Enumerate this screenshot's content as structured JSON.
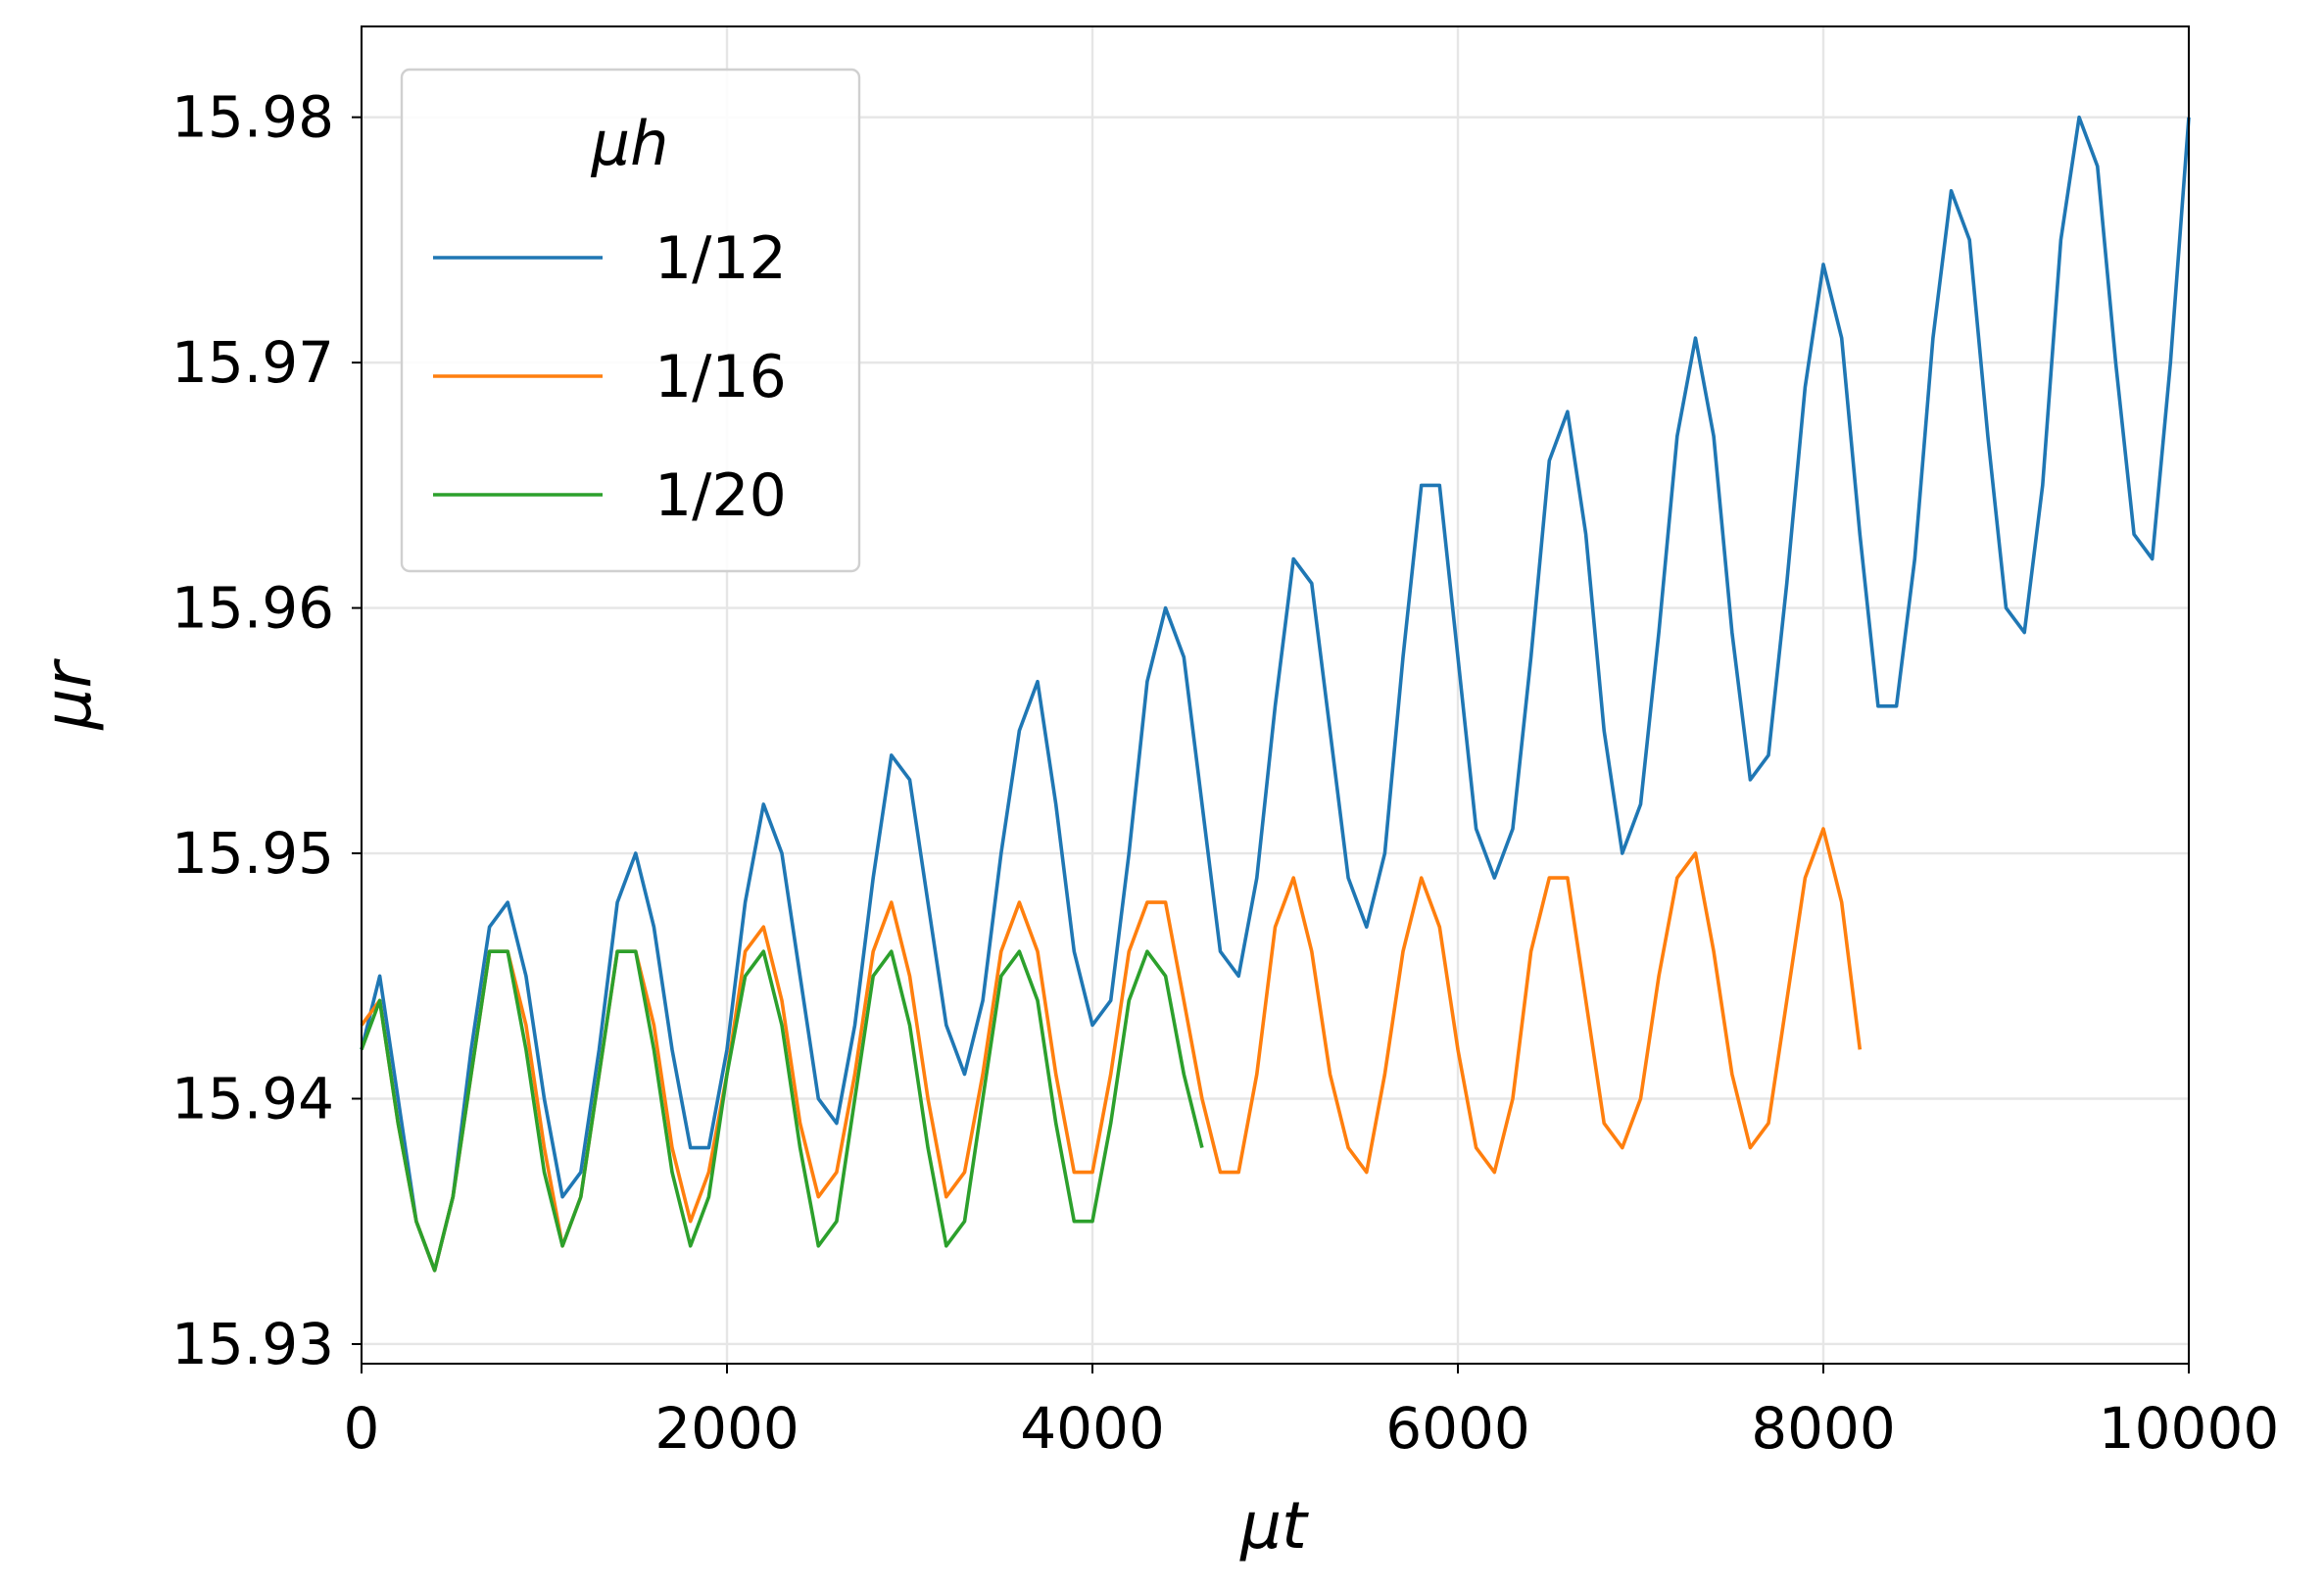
{
  "chart_data": {
    "type": "line",
    "x_label": "μt",
    "y_label": "μr",
    "legend_title": "μh",
    "legend_position": "upper left",
    "grid": true,
    "xlim": [
      0,
      10000
    ],
    "xticks": [
      0,
      2000,
      4000,
      6000,
      8000,
      10000
    ],
    "ylim": [
      15.9292,
      15.9837
    ],
    "yticks": [
      15.93,
      15.94,
      15.95,
      15.96,
      15.97,
      15.98
    ],
    "x": [
      0,
      100,
      200,
      300,
      400,
      500,
      600,
      700,
      800,
      900,
      1000,
      1100,
      1200,
      1300,
      1400,
      1500,
      1600,
      1700,
      1800,
      1900,
      2000,
      2100,
      2200,
      2300,
      2400,
      2500,
      2600,
      2700,
      2800,
      2900,
      3000,
      3100,
      3200,
      3300,
      3400,
      3500,
      3600,
      3700,
      3800,
      3900,
      4000,
      4100,
      4200,
      4300,
      4400,
      4500,
      4600,
      4700,
      4800,
      4900,
      5000,
      5100,
      5200,
      5300,
      5400,
      5500,
      5600,
      5700,
      5800,
      5900,
      6000,
      6100,
      6200,
      6300,
      6400,
      6500,
      6600,
      6700,
      6800,
      6900,
      7000,
      7100,
      7200,
      7300,
      7400,
      7500,
      7600,
      7700,
      7800,
      7900,
      8000,
      8100,
      8200,
      8300,
      8400,
      8500,
      8600,
      8700,
      8800,
      8900,
      9000,
      9100,
      9200,
      9300,
      9400,
      9500,
      9600,
      9700,
      9800,
      9900,
      10000
    ],
    "series": [
      {
        "name": "1/12",
        "color": "#1f77b4",
        "values": [
          15.942,
          15.945,
          15.94,
          15.935,
          15.933,
          15.936,
          15.942,
          15.947,
          15.948,
          15.945,
          15.94,
          15.936,
          15.937,
          15.942,
          15.948,
          15.95,
          15.947,
          15.942,
          15.938,
          15.938,
          15.942,
          15.948,
          15.952,
          15.95,
          15.945,
          15.94,
          15.939,
          15.943,
          15.949,
          15.954,
          15.953,
          15.948,
          15.943,
          15.941,
          15.944,
          15.95,
          15.955,
          15.957,
          15.952,
          15.946,
          15.943,
          15.944,
          15.95,
          15.957,
          15.96,
          15.958,
          15.952,
          15.946,
          15.945,
          15.949,
          15.956,
          15.962,
          15.961,
          15.955,
          15.949,
          15.947,
          15.95,
          15.958,
          15.965,
          15.965,
          15.958,
          15.951,
          15.949,
          15.951,
          15.958,
          15.966,
          15.968,
          15.963,
          15.955,
          15.95,
          15.952,
          15.959,
          15.967,
          15.971,
          15.967,
          15.959,
          15.953,
          15.954,
          15.961,
          15.969,
          15.974,
          15.971,
          15.963,
          15.956,
          15.956,
          15.962,
          15.971,
          15.977,
          15.975,
          15.967,
          15.96,
          15.959,
          15.965,
          15.975,
          15.98,
          15.978,
          15.97,
          15.963,
          15.962,
          15.97,
          15.98
        ]
      },
      {
        "name": "1/16",
        "color": "#ff7f0e",
        "values": [
          15.943,
          15.944,
          15.939,
          15.935,
          15.933,
          15.936,
          15.941,
          15.946,
          15.946,
          15.943,
          15.938,
          15.934,
          15.936,
          15.941,
          15.946,
          15.946,
          15.943,
          15.938,
          15.935,
          15.937,
          15.941,
          15.946,
          15.947,
          15.944,
          15.939,
          15.936,
          15.937,
          15.941,
          15.946,
          15.948,
          15.945,
          15.94,
          15.936,
          15.937,
          15.941,
          15.946,
          15.948,
          15.946,
          15.941,
          15.937,
          15.937,
          15.941,
          15.946,
          15.948,
          15.948,
          15.944,
          15.94,
          15.937,
          15.937,
          15.941,
          15.947,
          15.949,
          15.946,
          15.941,
          15.938,
          15.937,
          15.941,
          15.946,
          15.949,
          15.947,
          15.942,
          15.938,
          15.937,
          15.94,
          15.946,
          15.949,
          15.949,
          15.944,
          15.939,
          15.938,
          15.94,
          15.945,
          15.949,
          15.95,
          15.946,
          15.941,
          15.938,
          15.939,
          15.944,
          15.949,
          15.951,
          15.948,
          15.942,
          null,
          null,
          null,
          null,
          null,
          null,
          null,
          null,
          null,
          null,
          null,
          null,
          null,
          null,
          null,
          null,
          null,
          null
        ]
      },
      {
        "name": "1/20",
        "color": "#2ca02c",
        "values": [
          15.942,
          15.944,
          15.939,
          15.935,
          15.933,
          15.936,
          15.941,
          15.946,
          15.946,
          15.942,
          15.937,
          15.934,
          15.936,
          15.941,
          15.946,
          15.946,
          15.942,
          15.937,
          15.934,
          15.936,
          15.941,
          15.945,
          15.946,
          15.943,
          15.938,
          15.934,
          15.935,
          15.94,
          15.945,
          15.946,
          15.943,
          15.938,
          15.934,
          15.935,
          15.94,
          15.945,
          15.946,
          15.944,
          15.939,
          15.935,
          15.935,
          15.939,
          15.944,
          15.946,
          15.945,
          15.941,
          15.938,
          null,
          null,
          null,
          null,
          null,
          null,
          null,
          null,
          null,
          null,
          null,
          null,
          null,
          null,
          null,
          null,
          null,
          null,
          null,
          null,
          null,
          null,
          null,
          null,
          null,
          null,
          null,
          null,
          null,
          null,
          null,
          null,
          null,
          null,
          null,
          null,
          null,
          null,
          null,
          null,
          null,
          null,
          null,
          null,
          null,
          null,
          null,
          null,
          null,
          null,
          null,
          null,
          null,
          null
        ]
      }
    ]
  }
}
